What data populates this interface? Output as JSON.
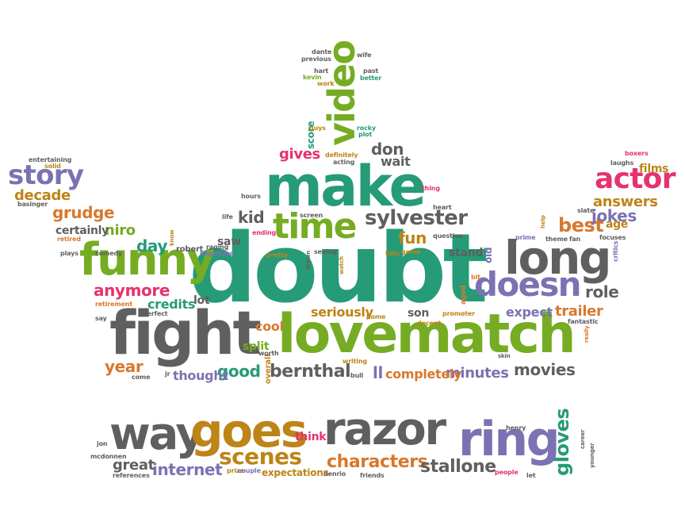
{
  "colors": {
    "green": "#269b77",
    "grey": "#5f5f5f",
    "olive": "#75ac23",
    "purple": "#7b72b3",
    "pink": "#e5336e",
    "orange": "#d9782c",
    "gold": "#bd8417"
  },
  "words": [
    {
      "text": "doubt",
      "color": "green"
    },
    {
      "text": "lovematch",
      "color": "olive"
    },
    {
      "text": "fight",
      "color": "grey"
    },
    {
      "text": "make",
      "color": "green"
    },
    {
      "text": "funny",
      "color": "olive"
    },
    {
      "text": "long",
      "color": "grey"
    },
    {
      "text": "razor",
      "color": "grey"
    },
    {
      "text": "way",
      "color": "grey"
    },
    {
      "text": "goes",
      "color": "gold"
    },
    {
      "text": "ring",
      "color": "purple"
    },
    {
      "text": "time",
      "color": "olive"
    },
    {
      "text": "actor",
      "color": "pink"
    },
    {
      "text": "doesn",
      "color": "purple"
    },
    {
      "text": "story",
      "color": "purple"
    },
    {
      "text": "video",
      "color": "olive"
    },
    {
      "text": "sylvester",
      "color": "grey"
    },
    {
      "text": "scenes",
      "color": "gold"
    },
    {
      "text": "gloves",
      "color": "green"
    },
    {
      "text": "characters",
      "color": "orange"
    },
    {
      "text": "stallone",
      "color": "grey"
    },
    {
      "text": "internet",
      "color": "purple"
    },
    {
      "text": "bernthal",
      "color": "grey"
    },
    {
      "text": "movies",
      "color": "grey"
    },
    {
      "text": "best",
      "color": "orange"
    },
    {
      "text": "jokes",
      "color": "purple"
    },
    {
      "text": "answers",
      "color": "gold"
    },
    {
      "text": "grudge",
      "color": "orange"
    },
    {
      "text": "niro",
      "color": "olive"
    },
    {
      "text": "kid",
      "color": "grey"
    },
    {
      "text": "fun",
      "color": "gold"
    },
    {
      "text": "anymore",
      "color": "pink"
    },
    {
      "text": "day",
      "color": "green"
    },
    {
      "text": "gives",
      "color": "pink"
    },
    {
      "text": "don",
      "color": "grey"
    },
    {
      "text": "wait",
      "color": "grey"
    },
    {
      "text": "role",
      "color": "grey"
    },
    {
      "text": "trailer",
      "color": "orange"
    },
    {
      "text": "expect",
      "color": "purple"
    },
    {
      "text": "minutes",
      "color": "purple"
    },
    {
      "text": "good",
      "color": "green"
    },
    {
      "text": "credits",
      "color": "green"
    },
    {
      "text": "year",
      "color": "orange"
    },
    {
      "text": "seriously",
      "color": "gold"
    },
    {
      "text": "completely",
      "color": "orange"
    },
    {
      "text": "thought",
      "color": "purple"
    },
    {
      "text": "great",
      "color": "grey"
    },
    {
      "text": "decade",
      "color": "gold"
    },
    {
      "text": "certainly",
      "color": "grey"
    },
    {
      "text": "saw",
      "color": "grey"
    },
    {
      "text": "lot",
      "color": "grey"
    },
    {
      "text": "cool",
      "color": "orange"
    },
    {
      "text": "split",
      "color": "olive"
    },
    {
      "text": "son",
      "color": "grey"
    },
    {
      "text": "stand",
      "color": "grey"
    },
    {
      "text": "think",
      "color": "pink"
    },
    {
      "text": "expectations",
      "color": "gold"
    },
    {
      "text": "ll",
      "color": "purple"
    },
    {
      "text": "age",
      "color": "gold"
    },
    {
      "text": "films",
      "color": "gold"
    },
    {
      "text": "score",
      "color": "green"
    },
    {
      "text": "overall",
      "color": "gold"
    },
    {
      "text": "old",
      "color": "purple"
    },
    {
      "text": "aged",
      "color": "orange"
    },
    {
      "text": "robert",
      "color": "grey"
    },
    {
      "text": "dante",
      "color": "grey"
    },
    {
      "text": "previous",
      "color": "grey"
    },
    {
      "text": "wife",
      "color": "grey"
    },
    {
      "text": "hart",
      "color": "grey"
    },
    {
      "text": "kevin",
      "color": "olive"
    },
    {
      "text": "past",
      "color": "grey"
    },
    {
      "text": "better",
      "color": "green"
    },
    {
      "text": "work",
      "color": "gold"
    },
    {
      "text": "guys",
      "color": "gold"
    },
    {
      "text": "rocky",
      "color": "green"
    },
    {
      "text": "plot",
      "color": "green"
    },
    {
      "text": "definitely",
      "color": "gold"
    },
    {
      "text": "acting",
      "color": "grey"
    },
    {
      "text": "entertaining",
      "color": "grey"
    },
    {
      "text": "solid",
      "color": "gold"
    },
    {
      "text": "basinger",
      "color": "grey"
    },
    {
      "text": "retired",
      "color": "orange"
    },
    {
      "text": "plays",
      "color": "grey"
    },
    {
      "text": "comedy",
      "color": "grey"
    },
    {
      "text": "retirement",
      "color": "orange"
    },
    {
      "text": "perfect",
      "color": "grey"
    },
    {
      "text": "say",
      "color": "grey"
    },
    {
      "text": "come",
      "color": "grey"
    },
    {
      "text": "jr",
      "color": "grey"
    },
    {
      "text": "hours",
      "color": "grey"
    },
    {
      "text": "life",
      "color": "grey"
    },
    {
      "text": "know",
      "color": "gold"
    },
    {
      "text": "raging",
      "color": "grey"
    },
    {
      "text": "happened",
      "color": "purple"
    },
    {
      "text": "ending",
      "color": "pink"
    },
    {
      "text": "pretty",
      "color": "gold"
    },
    {
      "text": "screen",
      "color": "grey"
    },
    {
      "text": "drawn",
      "color": "grey"
    },
    {
      "text": "seeing",
      "color": "grey"
    },
    {
      "text": "watch",
      "color": "gold"
    },
    {
      "text": "billy",
      "color": "gold"
    },
    {
      "text": "game",
      "color": "gold"
    },
    {
      "text": "question",
      "color": "grey"
    },
    {
      "text": "heart",
      "color": "grey"
    },
    {
      "text": "thing",
      "color": "pink"
    },
    {
      "text": "bit",
      "color": "orange"
    },
    {
      "text": "home",
      "color": "gold"
    },
    {
      "text": "decent",
      "color": "gold"
    },
    {
      "text": "promoter",
      "color": "gold"
    },
    {
      "text": "worth",
      "color": "grey"
    },
    {
      "text": "writing",
      "color": "gold"
    },
    {
      "text": "bull",
      "color": "grey"
    },
    {
      "text": "boxers",
      "color": "pink"
    },
    {
      "text": "laughs",
      "color": "grey"
    },
    {
      "text": "slate",
      "color": "grey"
    },
    {
      "text": "help",
      "color": "gold"
    },
    {
      "text": "prime",
      "color": "purple"
    },
    {
      "text": "theme",
      "color": "grey"
    },
    {
      "text": "fan",
      "color": "grey"
    },
    {
      "text": "focuses",
      "color": "grey"
    },
    {
      "text": "critics",
      "color": "purple"
    },
    {
      "text": "fantastic",
      "color": "grey"
    },
    {
      "text": "really",
      "color": "orange"
    },
    {
      "text": "skin",
      "color": "grey"
    },
    {
      "text": "jon",
      "color": "grey"
    },
    {
      "text": "mcdonnen",
      "color": "grey"
    },
    {
      "text": "references",
      "color": "grey"
    },
    {
      "text": "prize",
      "color": "gold"
    },
    {
      "text": "couple",
      "color": "purple"
    },
    {
      "text": "denrio",
      "color": "grey"
    },
    {
      "text": "friends",
      "color": "grey"
    },
    {
      "text": "people",
      "color": "pink"
    },
    {
      "text": "let",
      "color": "grey"
    },
    {
      "text": "henry",
      "color": "grey"
    },
    {
      "text": "career",
      "color": "grey"
    },
    {
      "text": "younger",
      "color": "grey"
    }
  ]
}
